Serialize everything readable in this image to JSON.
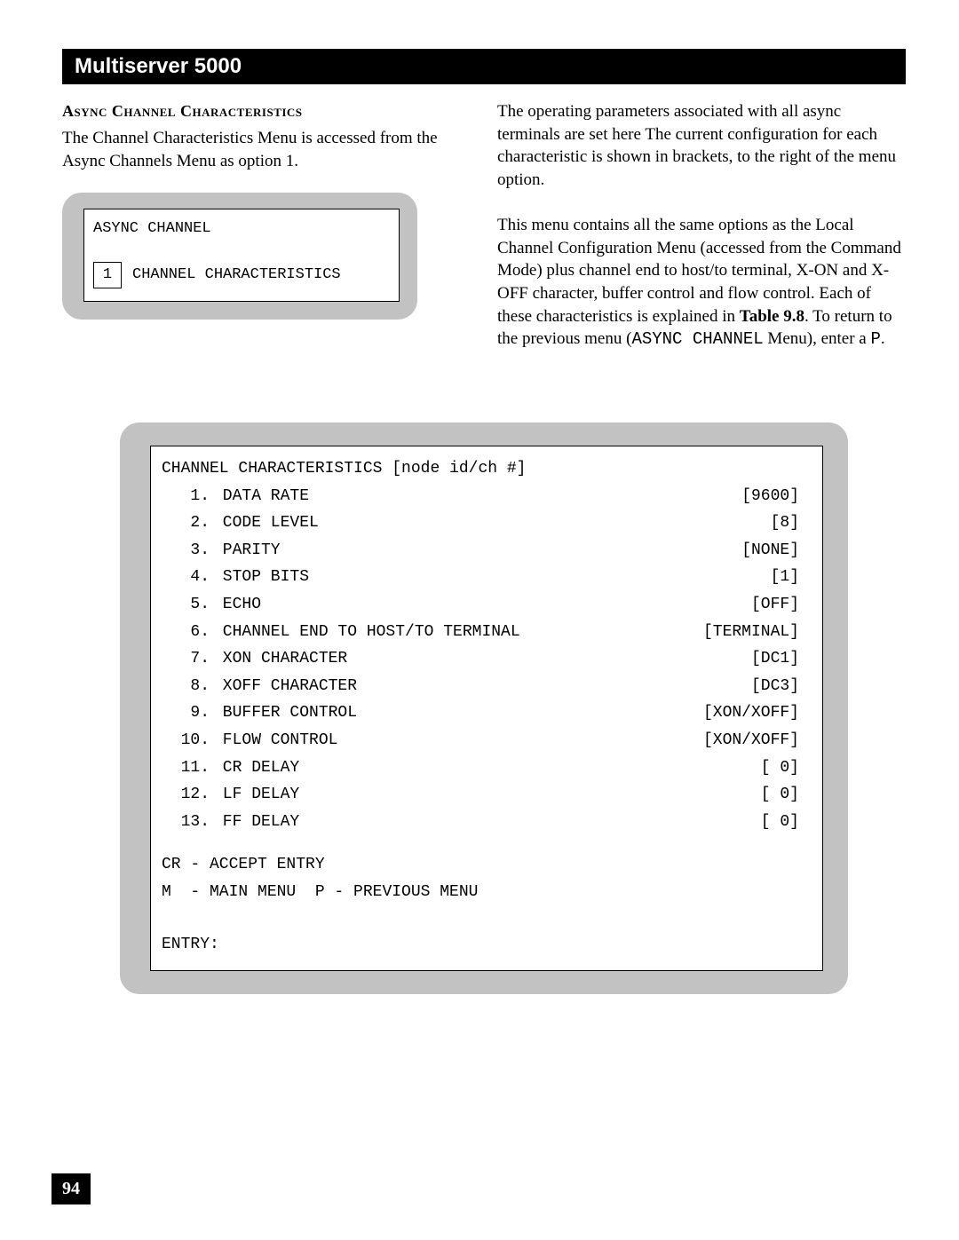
{
  "header": {
    "title": "Multiserver 5000"
  },
  "left": {
    "heading": "Async Channel Characteristics",
    "para": "The Channel Characteristics Menu is accessed from the Async Channels Menu as option 1."
  },
  "right": {
    "para1": "The operating parameters associated with all async terminals are set here  The current configuration for each characteristic is shown in brackets, to the right of the menu option.",
    "para2a": "This menu contains all the same options as the Local Channel Configuration Menu (accessed from the Command Mode) plus channel end to host/to terminal, X-ON and X-OFF character, buffer control and flow control. Each of these characteristics is explained in ",
    "tableRef": "Table 9.8",
    "para2b": ". To return to the previous menu (",
    "asyncMenu": "ASYNC CHANNEL",
    "para2c": " Menu), enter a ",
    "pChar": "P",
    "para2d": "."
  },
  "smallPanel": {
    "title": "ASYNC CHANNEL",
    "optNum": "1",
    "optLabel": "CHANNEL CHARACTERISTICS"
  },
  "bigPanel": {
    "title": "CHANNEL CHARACTERISTICS [node id/ch #]",
    "rows": [
      {
        "n": " 1.",
        "label": " DATA RATE",
        "val": "[9600]"
      },
      {
        "n": " 2.",
        "label": " CODE LEVEL",
        "val": "[8]"
      },
      {
        "n": " 3.",
        "label": " PARITY",
        "val": "[NONE]"
      },
      {
        "n": " 4.",
        "label": " STOP BITS",
        "val": "[1]"
      },
      {
        "n": " 5.",
        "label": " ECHO",
        "val": "[OFF]"
      },
      {
        "n": " 6.",
        "label": " CHANNEL END TO HOST/TO TERMINAL",
        "val": "[TERMINAL]"
      },
      {
        "n": " 7.",
        "label": " XON CHARACTER",
        "val": "[DC1]"
      },
      {
        "n": " 8.",
        "label": " XOFF CHARACTER",
        "val": "[DC3]"
      },
      {
        "n": " 9.",
        "label": " BUFFER CONTROL",
        "val": "[XON/XOFF]"
      },
      {
        "n": "10.",
        "label": " FLOW CONTROL",
        "val": "[XON/XOFF]"
      },
      {
        "n": "11.",
        "label": " CR DELAY",
        "val": "[ 0]"
      },
      {
        "n": "12.",
        "label": " LF DELAY",
        "val": "[ 0]"
      },
      {
        "n": "13.",
        "label": " FF DELAY",
        "val": "[ 0]"
      }
    ],
    "footer1": "CR - ACCEPT ENTRY",
    "footer2": "M  - MAIN MENU  P - PREVIOUS MENU",
    "entry": "ENTRY:"
  },
  "pageNumber": "94",
  "colors": {
    "panelBg": "#c2c2c2",
    "black": "#000000",
    "white": "#ffffff"
  }
}
